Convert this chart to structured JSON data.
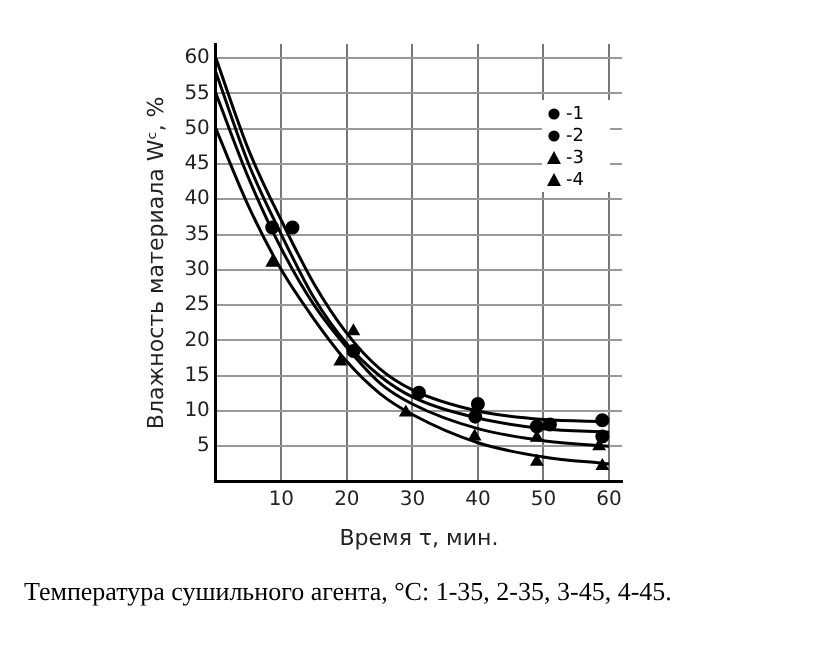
{
  "chart_data": {
    "type": "scatter",
    "xlabel": "Время τ, мин.",
    "ylabel": "Влажность материала Wᶜ, %",
    "annotations": [
      "Температура сушильного агента, °C: 1-35, 2-35, 3-45, 4-45."
    ],
    "xlim": [
      0,
      62
    ],
    "ylim": [
      0,
      62
    ],
    "xticks": [
      {
        "value": 0,
        "label": null
      },
      10,
      20,
      30,
      40,
      50,
      60
    ],
    "yticks": [
      {
        "value": 0,
        "label": null
      },
      5,
      10,
      15,
      20,
      25,
      30,
      35,
      40,
      45,
      50,
      55,
      60
    ],
    "grid": true,
    "legend": "top right",
    "series": [
      {
        "type": "line",
        "marker": "none",
        "color": "#000000",
        "x": [
          0,
          5,
          10,
          15,
          20,
          25,
          30,
          40,
          50,
          60
        ],
        "values": [
          60,
          47,
          37,
          28,
          21,
          16,
          13,
          10,
          8.8,
          8.5
        ]
      },
      {
        "type": "line",
        "marker": "none",
        "color": "#000000",
        "x": [
          0,
          5,
          10,
          15,
          20,
          25,
          30,
          40,
          50,
          60
        ],
        "values": [
          58,
          45,
          35,
          26,
          19.5,
          15,
          12,
          9,
          7.5,
          7
        ]
      },
      {
        "type": "line",
        "marker": "none",
        "color": "#000000",
        "x": [
          0,
          5,
          10,
          15,
          20,
          25,
          30,
          40,
          50,
          60
        ],
        "values": [
          55,
          43,
          33,
          25,
          19,
          14,
          11,
          7.5,
          5.8,
          5
        ]
      },
      {
        "type": "line",
        "marker": "none",
        "color": "#000000",
        "x": [
          0,
          5,
          10,
          15,
          20,
          25,
          30,
          40,
          50,
          60
        ],
        "values": [
          50,
          39,
          30,
          23,
          17,
          12.5,
          9.5,
          5.5,
          3.5,
          2.5
        ]
      },
      {
        "name": "-1",
        "marker": "circle",
        "color": "#000000",
        "x": [
          11.7,
          31,
          40,
          51,
          59
        ],
        "values": [
          36,
          12.6,
          11,
          8.1,
          8.7
        ]
      },
      {
        "name": "-2",
        "marker": "circle",
        "color": "#000000",
        "x": [
          8.6,
          21,
          39.6,
          49,
          59
        ],
        "values": [
          36,
          18.5,
          9.2,
          7.8,
          6.4
        ]
      },
      {
        "name": "-3",
        "marker": "triangle",
        "color": "#000000",
        "x": [
          21,
          49,
          58.5
        ],
        "values": [
          21.3,
          6.2,
          5
        ]
      },
      {
        "name": "-4",
        "marker": "triangle",
        "color": "#000000",
        "x": [
          8.6,
          19,
          29,
          39.5,
          49,
          59
        ],
        "values": [
          31,
          17,
          9.8,
          6.4,
          2.8,
          2.2
        ]
      }
    ]
  }
}
